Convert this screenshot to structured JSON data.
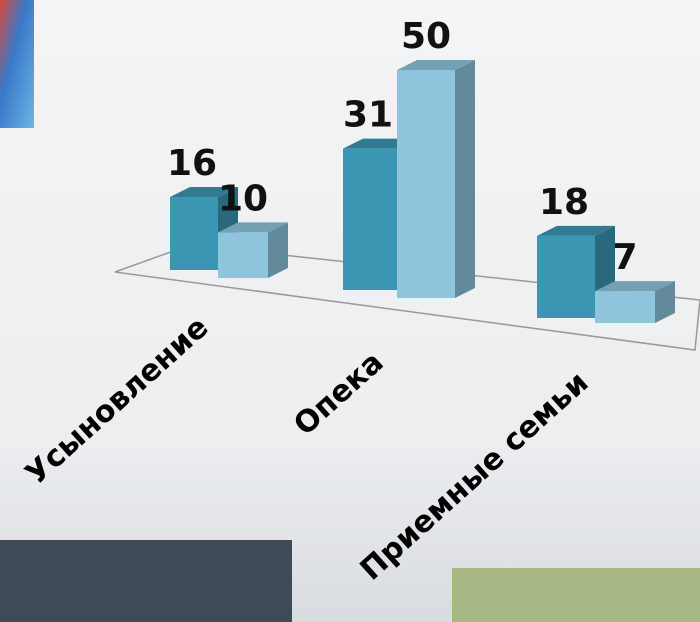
{
  "chart_data": {
    "type": "bar3d",
    "categories": [
      "Усыновление",
      "Опека",
      "Приемные семьи"
    ],
    "series": [
      {
        "color": "#3a96b2",
        "values": [
          16,
          31,
          18
        ]
      },
      {
        "color": "#8ec5dc",
        "values": [
          10,
          50,
          7
        ]
      }
    ]
  }
}
